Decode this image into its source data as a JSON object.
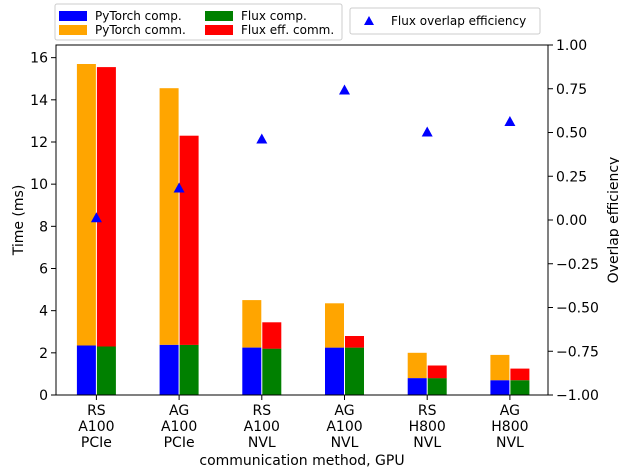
{
  "chart_data": {
    "type": "bar",
    "xlabel": "communication method, GPU",
    "ylabel": "Time (ms)",
    "y2label": "Overlap efficiency",
    "ylim": [
      0,
      16.6
    ],
    "y2lim": [
      -1.0,
      1.0
    ],
    "yticks": [
      "0",
      "2",
      "4",
      "6",
      "8",
      "10",
      "12",
      "14",
      "16"
    ],
    "y2ticks": [
      "−1.00",
      "−0.75",
      "−0.50",
      "−0.25",
      "0.00",
      "0.25",
      "0.50",
      "0.75",
      "1.00"
    ],
    "categories": [
      [
        "RS",
        "A100",
        "PCIe"
      ],
      [
        "AG",
        "A100",
        "PCIe"
      ],
      [
        "RS",
        "A100",
        "NVL"
      ],
      [
        "AG",
        "A100",
        "NVL"
      ],
      [
        "RS",
        "H800",
        "NVL"
      ],
      [
        "AG",
        "H800",
        "NVL"
      ]
    ],
    "series": [
      {
        "name": "PyTorch comp.",
        "color": "#0000ff",
        "bar": "pytorch",
        "stack": 0,
        "values": [
          2.35,
          2.38,
          2.25,
          2.25,
          0.8,
          0.7
        ]
      },
      {
        "name": "PyTorch comm.",
        "color": "#ffa500",
        "bar": "pytorch",
        "stack": 1,
        "values": [
          13.35,
          12.17,
          2.25,
          2.1,
          1.2,
          1.2
        ]
      },
      {
        "name": "Flux comp.",
        "color": "#008000",
        "bar": "flux",
        "stack": 0,
        "values": [
          2.3,
          2.38,
          2.2,
          2.25,
          0.8,
          0.7
        ]
      },
      {
        "name": "Flux eff. comm.",
        "color": "#ff0000",
        "bar": "flux",
        "stack": 1,
        "values": [
          13.25,
          9.92,
          1.25,
          0.55,
          0.6,
          0.55
        ]
      }
    ],
    "scatter": {
      "name": "Flux overlap efficiency",
      "color": "#0000ff",
      "marker": "triangle",
      "values": [
        0.01,
        0.18,
        0.46,
        0.74,
        0.5,
        0.56
      ]
    },
    "legend": {
      "placement": "top"
    }
  }
}
